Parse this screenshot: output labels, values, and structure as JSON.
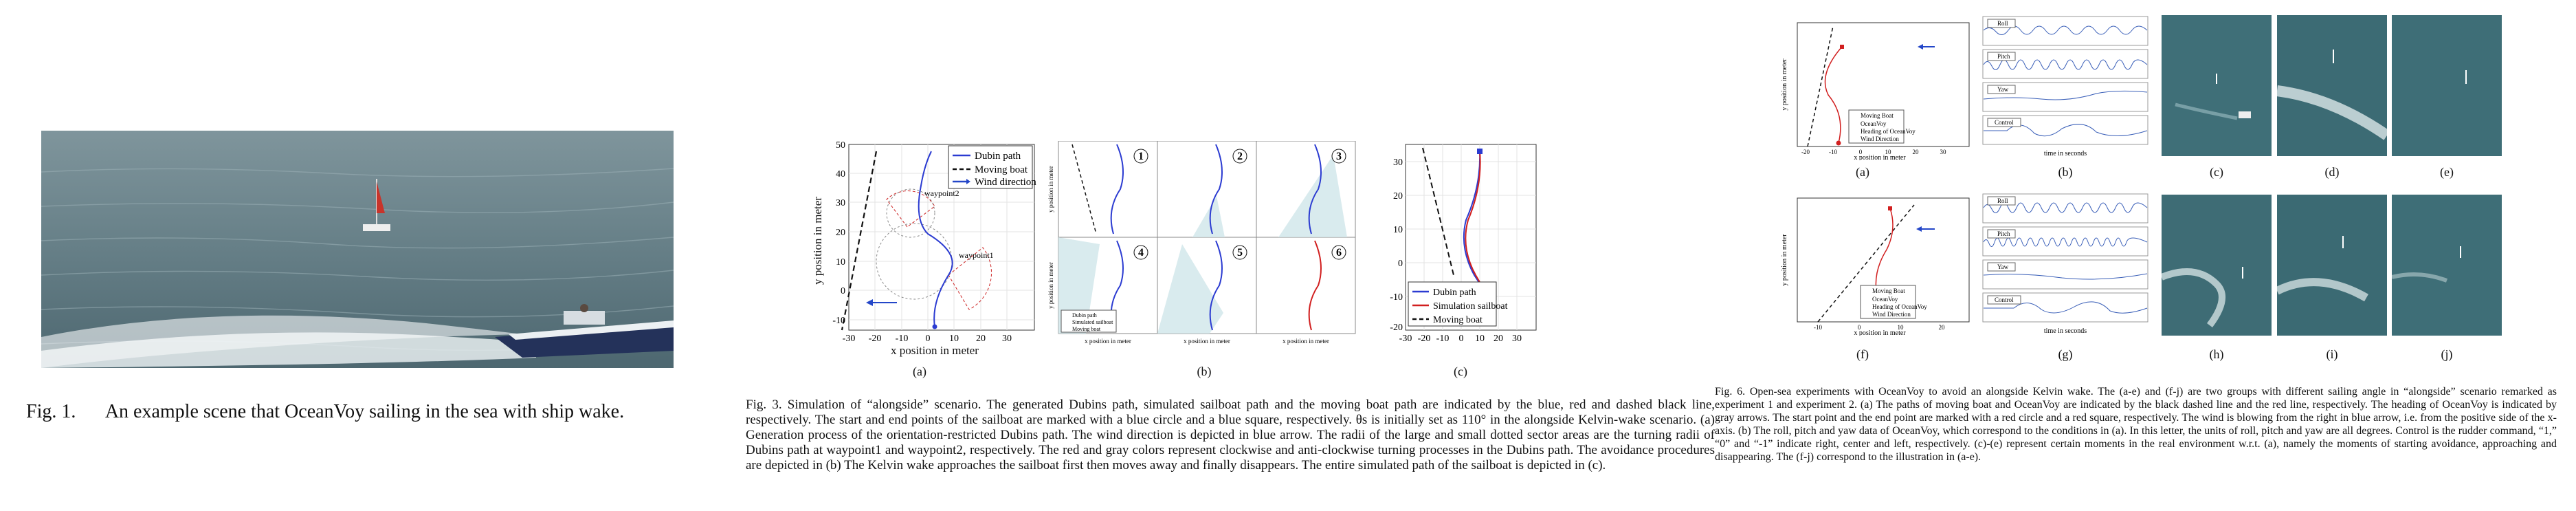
{
  "fig1": {
    "caption_label": "Fig. 1.",
    "caption_text": "An example scene that OceanVoy sailing in the sea with ship wake."
  },
  "fig3": {
    "caption": "Fig. 3.    Simulation of “alongside” scenario. The generated Dubins path, simulated sailboat path and the moving boat path are indicated by the blue, red and dashed black line, respectively. The start and end points of the sailboat are marked with a blue circle and a blue square, respectively. θs is initially set as 110° in the alongside Kelvin-wake scenario. (a) Generation process of the orientation-restricted Dubins path. The wind direction is depicted in blue arrow. The radii of the large and small dotted sector areas are the turning radii of Dubins path at waypoint1 and waypoint2, respectively. The red and gray colors represent clockwise and anti-clockwise turning processes in the Dubins path. The avoidance procedures are depicted in (b) The Kelvin wake approaches the sailboat first then moves away and finally disappears. The entire simulated path of the sailboat is depicted in (c).",
    "panel_a": {
      "label": "(a)",
      "xlabel": "x position in meter",
      "ylabel": "y position in meter",
      "xticks": [
        "-30",
        "-20",
        "-10",
        "0",
        "10",
        "20",
        "30"
      ],
      "yticks": [
        "50",
        "40",
        "30",
        "20",
        "10",
        "0",
        "-10"
      ],
      "legend": [
        "Dubin path",
        "Moving boat",
        "Wind direction"
      ],
      "annotations": [
        "waypoint2",
        "waypoint1"
      ]
    },
    "panel_b": {
      "label": "(b)",
      "subpanels": [
        "1",
        "2",
        "3",
        "4",
        "5",
        "6"
      ],
      "xlabel": "x position in meter",
      "ylabel": "y position in meter",
      "legend": [
        "Dubin path",
        "Simulated sailboat",
        "Moving boat"
      ]
    },
    "panel_c": {
      "label": "(c)",
      "xlabel": "x position in meter",
      "ylabel": "y position in meter",
      "xticks": [
        "-30",
        "-20",
        "-10",
        "0",
        "10",
        "20",
        "30"
      ],
      "yticks": [
        "30",
        "20",
        "10",
        "0",
        "-10",
        "-20"
      ],
      "legend": [
        "Dubin path",
        "Simulation sailboat",
        "Moving boat"
      ]
    }
  },
  "fig6": {
    "caption": "Fig. 6.    Open-sea experiments with OceanVoy to avoid an alongside Kelvin wake. The (a-e) and (f-j) are two groups with different sailing angle in “alongside” scenario remarked as experiment 1 and experiment 2. (a) The paths of moving boat and OceanVoy are indicated by the black dashed line and the red line, respectively. The heading of OceanVoy is indicated by gray arrows. The start point and the end point are marked with a red circle and a red square, respectively. The wind is blowing from the right in blue arrow, i.e. from the positive side of the x-axis. (b) The roll, pitch and yaw data of OceanVoy, which correspond to the conditions in (a). In this letter, the units of roll, pitch and yaw are all degrees. Control is the rudder command, “1,” “0” and “-1” indicate right, center and left, respectively. (c)-(e) represent certain moments in the real environment w.r.t. (a), namely the moments of starting avoidance, approaching and disappearing. The (f-j) correspond to the illustration in (a-e).",
    "top_labels": [
      "(a)",
      "(b)",
      "(c)",
      "(d)",
      "(e)"
    ],
    "bottom_labels": [
      "(f)",
      "(g)",
      "(h)",
      "(i)",
      "(j)"
    ],
    "path_legend": [
      "Moving Boat",
      "OceanVoy",
      "Heading of OceanVoy",
      "Wind Direction"
    ],
    "path_xlabel": "x position in meter",
    "path_ylabel": "y position in meter",
    "series_labels": [
      "Roll",
      "Pitch",
      "Yaw",
      "Control"
    ],
    "series_xlabel": "time in seconds",
    "top_xticks": [
      "-20",
      "-10",
      "0",
      "10",
      "20",
      "30"
    ],
    "bottom_xticks": [
      "-10",
      "0",
      "10",
      "20"
    ]
  },
  "colors": {
    "dubin": "#2b3bd1",
    "sailboat": "#d11f1f",
    "moving": "#111111",
    "wind": "#2346c8",
    "sector": "#cfe6ea",
    "sea": "#3f6f78"
  }
}
